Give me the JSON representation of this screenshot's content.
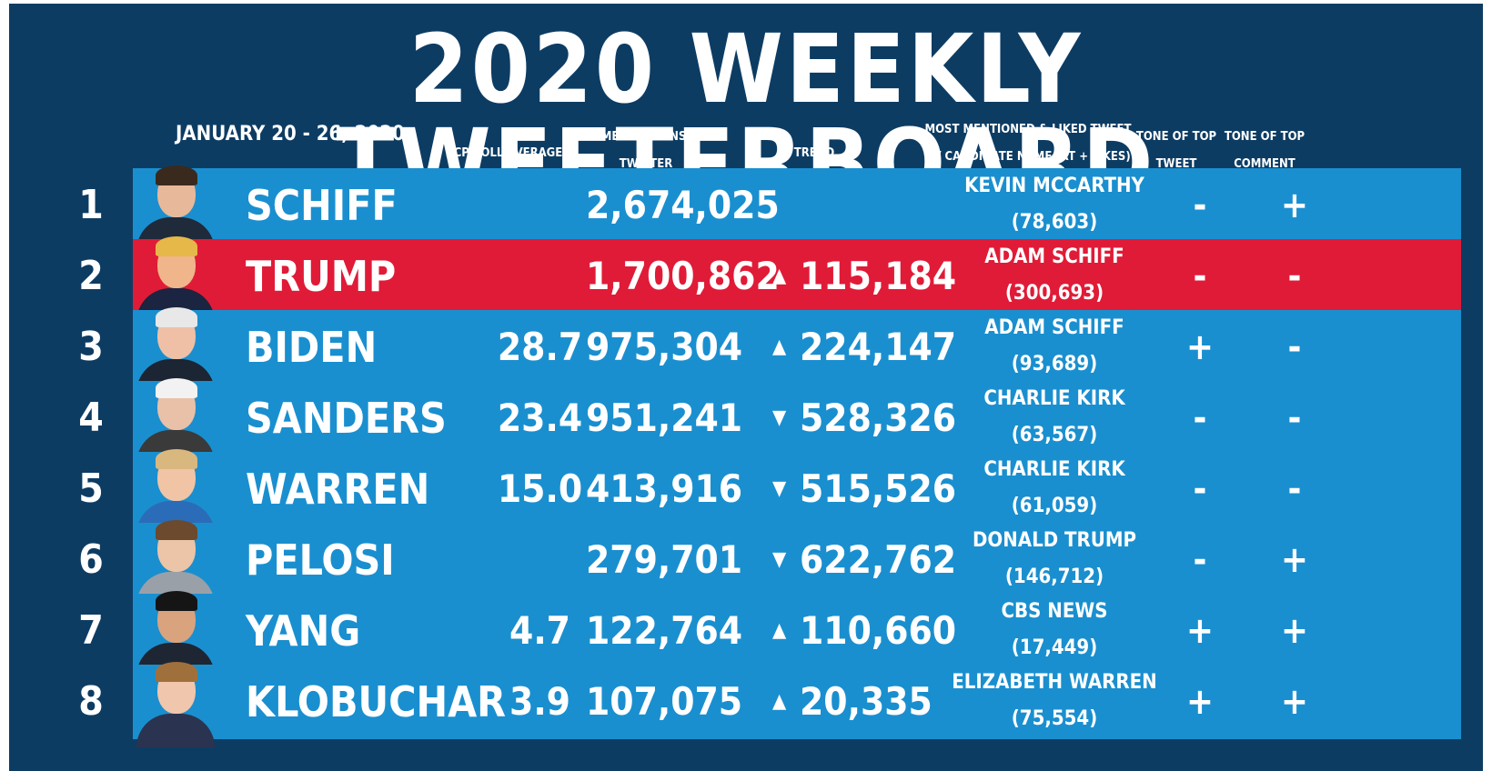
{
  "title": "2020 WEEKLY TWEETERBOARD",
  "date_range": "JANUARY 20 - 26, 2020",
  "headers": {
    "poll": "RCP POLL AVERAGE",
    "mentions": "NAME MENTIONS ON TWITTER",
    "trend": "TREND",
    "tweet": "MOST MENTIONED & LIKED TWEET W/ CANDIDATE NAME (RT + LIKES)",
    "tone_tweet": "TONE OF TOP TWEET",
    "tone_comment": "TONE OF TOP COMMENT"
  },
  "colors": {
    "background": "#0d3c63",
    "row_blue": "#1a8fcf",
    "row_red": "#e01b37",
    "text": "#ffffff"
  },
  "rows": [
    {
      "rank": "1",
      "name": "SCHIFF",
      "poll": "",
      "mentions": "2,674,025",
      "trend_dir": "",
      "trend_arrow": "",
      "trend": "",
      "tweet_author": "KEVIN MCCARTHY",
      "tweet_count": "(78,603)",
      "tone_tweet": "-",
      "tone_comment": "+",
      "color": "blue",
      "photo_icon": "schiff-photo-icon"
    },
    {
      "rank": "2",
      "name": "TRUMP",
      "poll": "",
      "mentions": "1,700,862",
      "trend_dir": "up",
      "trend_arrow": "▲",
      "trend": "115,184",
      "tweet_author": "ADAM SCHIFF",
      "tweet_count": "(300,693)",
      "tone_tweet": "-",
      "tone_comment": "-",
      "color": "red",
      "photo_icon": "trump-photo-icon"
    },
    {
      "rank": "3",
      "name": "BIDEN",
      "poll": "28.7",
      "mentions": "975,304",
      "trend_dir": "up",
      "trend_arrow": "▲",
      "trend": "224,147",
      "tweet_author": "ADAM SCHIFF",
      "tweet_count": "(93,689)",
      "tone_tweet": "+",
      "tone_comment": "-",
      "color": "blue",
      "photo_icon": "biden-photo-icon"
    },
    {
      "rank": "4",
      "name": "SANDERS",
      "poll": "23.4",
      "mentions": "951,241",
      "trend_dir": "down",
      "trend_arrow": "▼",
      "trend": "528,326",
      "tweet_author": "CHARLIE KIRK",
      "tweet_count": "(63,567)",
      "tone_tweet": "-",
      "tone_comment": "-",
      "color": "blue",
      "photo_icon": "sanders-photo-icon"
    },
    {
      "rank": "5",
      "name": "WARREN",
      "poll": "15.0",
      "mentions": "413,916",
      "trend_dir": "down",
      "trend_arrow": "▼",
      "trend": "515,526",
      "tweet_author": "CHARLIE KIRK",
      "tweet_count": "(61,059)",
      "tone_tweet": "-",
      "tone_comment": "-",
      "color": "blue",
      "photo_icon": "warren-photo-icon"
    },
    {
      "rank": "6",
      "name": "PELOSI",
      "poll": "",
      "mentions": "279,701",
      "trend_dir": "down",
      "trend_arrow": "▼",
      "trend": "622,762",
      "tweet_author": "DONALD TRUMP",
      "tweet_count": "(146,712)",
      "tone_tweet": "-",
      "tone_comment": "+",
      "color": "blue",
      "photo_icon": "pelosi-photo-icon"
    },
    {
      "rank": "7",
      "name": "YANG",
      "poll": "4.7",
      "mentions": "122,764",
      "trend_dir": "up",
      "trend_arrow": "▲",
      "trend": "110,660",
      "tweet_author": "CBS NEWS",
      "tweet_count": "(17,449)",
      "tone_tweet": "+",
      "tone_comment": "+",
      "color": "blue",
      "photo_icon": "yang-photo-icon"
    },
    {
      "rank": "8",
      "name": "KLOBUCHAR",
      "poll": "3.9",
      "mentions": "107,075",
      "trend_dir": "up",
      "trend_arrow": "▲",
      "trend": "20,335",
      "tweet_author": "ELIZABETH WARREN",
      "tweet_count": "(75,554)",
      "tone_tweet": "+",
      "tone_comment": "+",
      "color": "blue",
      "photo_icon": "klobuchar-photo-icon"
    }
  ]
}
